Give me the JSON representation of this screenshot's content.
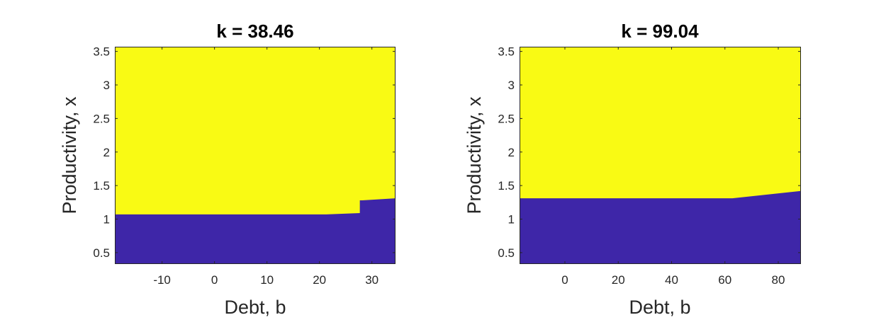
{
  "chart_data": [
    {
      "type": "heatmap",
      "title": "k = 38.46",
      "xlabel": "Debt, b",
      "ylabel": "Productivity, x",
      "xlim": [
        -19,
        34.5
      ],
      "ylim": [
        0.33,
        3.57
      ],
      "xticks": [
        -10,
        0,
        10,
        20,
        30
      ],
      "yticks": [
        0.5,
        1,
        1.5,
        2,
        2.5,
        3,
        3.5
      ],
      "xtick_labels": [
        "-10",
        "0",
        "10",
        "20",
        "30"
      ],
      "ytick_labels": [
        "0.5",
        "1",
        "1.5",
        "2",
        "2.5",
        "3",
        "3.5"
      ],
      "regions": [
        {
          "color": "#f9fa14",
          "description_value": "upper region"
        },
        {
          "color": "#3e26a8",
          "description_value": "lower region"
        }
      ],
      "boundary": {
        "x": [
          -19,
          21.3,
          27.7,
          27.7,
          28.2,
          34.5
        ],
        "y": [
          1.07,
          1.07,
          1.09,
          1.28,
          1.28,
          1.31
        ]
      },
      "grid": false
    },
    {
      "type": "heatmap",
      "title": "k = 99.04",
      "xlabel": "Debt, b",
      "ylabel": "Productivity, x",
      "xlim": [
        -17,
        88.5
      ],
      "ylim": [
        0.33,
        3.57
      ],
      "xticks": [
        0,
        20,
        40,
        60,
        80
      ],
      "yticks": [
        0.5,
        1,
        1.5,
        2,
        2.5,
        3,
        3.5
      ],
      "xtick_labels": [
        "0",
        "20",
        "40",
        "60",
        "80"
      ],
      "ytick_labels": [
        "0.5",
        "1",
        "1.5",
        "2",
        "2.5",
        "3",
        "3.5"
      ],
      "regions": [
        {
          "color": "#f9fa14",
          "description_value": "upper region"
        },
        {
          "color": "#3e26a8",
          "description_value": "lower region"
        }
      ],
      "boundary": {
        "x": [
          -17,
          62.8,
          88.5
        ],
        "y": [
          1.31,
          1.31,
          1.42
        ]
      },
      "grid": false
    }
  ]
}
